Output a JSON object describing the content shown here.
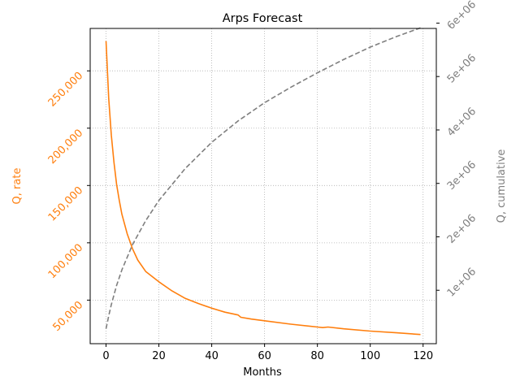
{
  "chart_data": {
    "type": "line",
    "title": "Arps Forecast",
    "xlabel": "Months",
    "ylabel_left": "Q, rate",
    "ylabel_right": "Q, cumulative",
    "xlim": [
      -6,
      125
    ],
    "ylim_left": [
      12000,
      287000
    ],
    "ylim_right": [
      0,
      5900000
    ],
    "grid": true,
    "x_ticks": [
      0,
      20,
      40,
      60,
      80,
      100,
      120
    ],
    "y_left_ticks": [
      50000,
      100000,
      150000,
      200000,
      250000
    ],
    "y_left_tick_labels": [
      "50,000",
      "100,000",
      "150,000",
      "200,000",
      "250,000"
    ],
    "y_right_ticks": [
      1000000,
      2000000,
      3000000,
      4000000,
      5000000,
      6000000
    ],
    "y_right_tick_labels": [
      "1e+06",
      "2e+06",
      "3e+06",
      "4e+06",
      "5e+06",
      "6e+06"
    ],
    "colors": {
      "rate": "#ff7f0e",
      "cumulative": "#7f7f7f",
      "grid": "#b0b0b0",
      "axis": "#000000"
    },
    "series": [
      {
        "axis": "left",
        "style": "solid",
        "color": "#ff7f0e",
        "x": [
          0,
          1,
          2,
          3,
          4,
          5,
          6,
          8,
          10,
          12,
          15,
          20,
          25,
          30,
          35,
          40,
          45,
          50,
          51,
          55,
          60,
          70,
          80,
          82,
          84,
          90,
          100,
          110,
          119
        ],
        "y": [
          276000,
          226000,
          194000,
          170000,
          151000,
          137000,
          125000,
          108000,
          95000,
          85000,
          75000,
          66000,
          58000,
          51500,
          47000,
          43000,
          39500,
          37000,
          35000,
          33500,
          32000,
          29000,
          26500,
          26000,
          26500,
          25000,
          23000,
          21500,
          20000
        ]
      },
      {
        "axis": "right",
        "style": "dashed",
        "color": "#7f7f7f",
        "x": [
          0,
          1,
          2,
          4,
          6,
          10,
          15,
          20,
          30,
          40,
          50,
          60,
          70,
          80,
          90,
          100,
          110,
          119
        ],
        "y": [
          280000,
          520000,
          730000,
          1090000,
          1380000,
          1850000,
          2300000,
          2680000,
          3280000,
          3770000,
          4170000,
          4510000,
          4800000,
          5070000,
          5320000,
          5550000,
          5750000,
          5910000
        ]
      }
    ]
  }
}
